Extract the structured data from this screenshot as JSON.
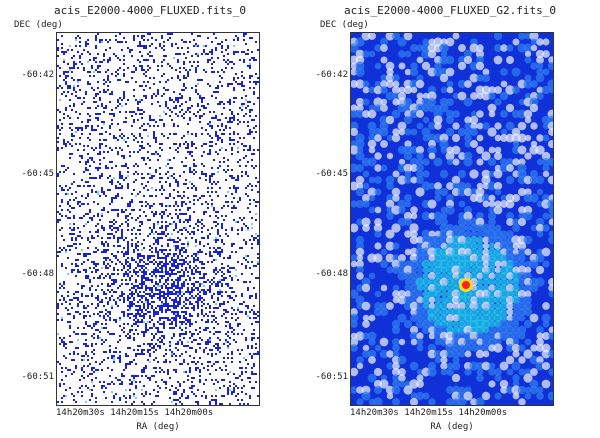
{
  "panels": [
    {
      "title": "acis_E2000-4000_FLUXED.fits_0",
      "ylabel": "DEC (deg)",
      "xlabel": "RA (deg)",
      "yticks": [
        "-60:42",
        "-60:45",
        "-60:48",
        "-60:51"
      ],
      "xticks": [
        "14h20m30s",
        "14h20m15s",
        "14h20m00s"
      ],
      "colors": {
        "pixel": "#1a22d8",
        "bg": "#ffffff",
        "accent": "#7fc6ff"
      }
    },
    {
      "title": "acis_E2000-4000_FLUXED_G2.fits_0",
      "ylabel": "DEC (deg)",
      "xlabel": "RA (deg)",
      "yticks": [
        "-60:42",
        "-60:45",
        "-60:48",
        "-60:51"
      ],
      "xticks": [
        "14h20m30s",
        "14h20m15s",
        "14h20m00s"
      ],
      "colors": {
        "bg": "#1030d8",
        "mid": "#2f7bf0",
        "hi": "#23c6e8",
        "peak": "#ff2020",
        "white": "#e6ecff"
      }
    }
  ]
}
